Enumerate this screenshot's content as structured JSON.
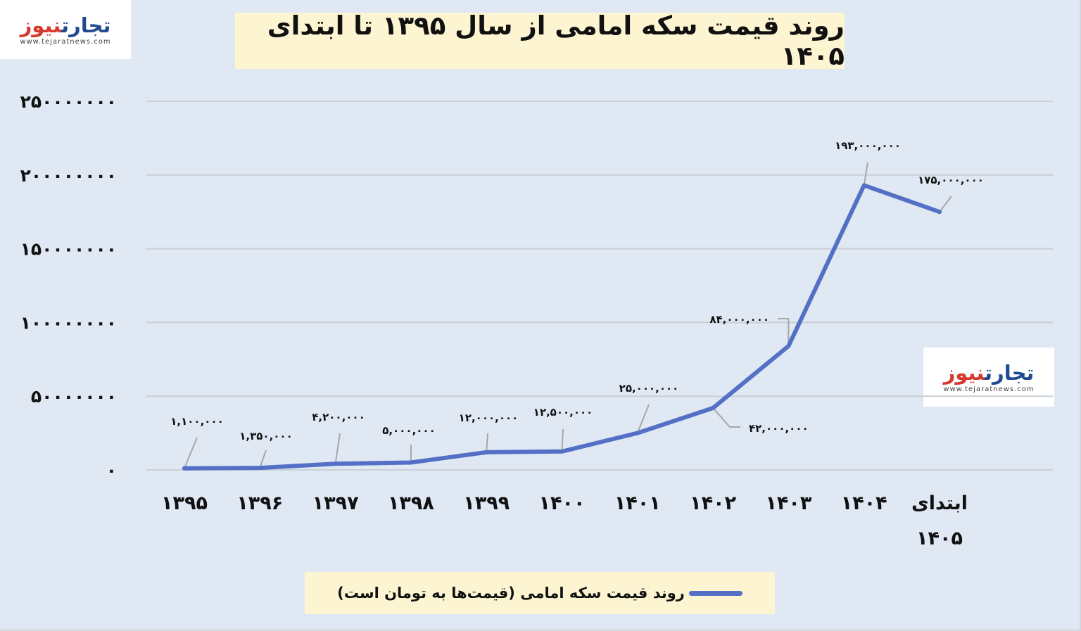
{
  "branding": {
    "logo_name_part1": "تجارت",
    "logo_name_part2": "نیوز",
    "logo_url": "www.tejaratnews.com"
  },
  "legend": {
    "label": "روند قیمت سکه امامی (قیمت‌ها به تومان است)",
    "color": "#5470c6"
  },
  "chart_data": {
    "type": "line",
    "title": "روند قیمت سکه امامی از سال ۱۳۹۵ تا ابتدای ۱۴۰۵",
    "categories": [
      [
        "۱۳۹۵"
      ],
      [
        "۱۳۹۶"
      ],
      [
        "۱۳۹۷"
      ],
      [
        "۱۳۹۸"
      ],
      [
        "۱۳۹۹"
      ],
      [
        "۱۴۰۰"
      ],
      [
        "۱۴۰۱"
      ],
      [
        "۱۴۰۲"
      ],
      [
        "۱۴۰۳"
      ],
      [
        "۱۴۰۴"
      ],
      [
        "ابتدای",
        "۱۴۰۵"
      ]
    ],
    "series": [
      {
        "name": "روند قیمت سکه امامی (قیمت‌ها به تومان است)",
        "color": "#5470c6",
        "values": [
          1100000,
          1350000,
          4200000,
          5000000,
          12000000,
          12500000,
          25000000,
          42000000,
          84000000,
          193000000,
          175000000
        ],
        "labels": [
          "۱,۱۰۰,۰۰۰",
          "۱,۳۵۰,۰۰۰",
          "۴,۲۰۰,۰۰۰",
          "۵,۰۰۰,۰۰۰",
          "۱۲,۰۰۰,۰۰۰",
          "۱۲,۵۰۰,۰۰۰",
          "۲۵,۰۰۰,۰۰۰",
          "۴۲,۰۰۰,۰۰۰",
          "۸۴,۰۰۰,۰۰۰",
          "۱۹۳,۰۰۰,۰۰۰",
          "۱۷۵,۰۰۰,۰۰۰"
        ]
      }
    ],
    "yticks": [
      0,
      50000000,
      100000000,
      150000000,
      200000000,
      250000000
    ],
    "ytick_labels": [
      "۰",
      "۵۰۰۰۰۰۰۰",
      "۱۰۰۰۰۰۰۰۰",
      "۱۵۰۰۰۰۰۰۰",
      "۲۰۰۰۰۰۰۰۰",
      "۲۵۰۰۰۰۰۰۰"
    ],
    "ylim": [
      0,
      250000000
    ],
    "grid": true,
    "legend_position": "bottom"
  }
}
